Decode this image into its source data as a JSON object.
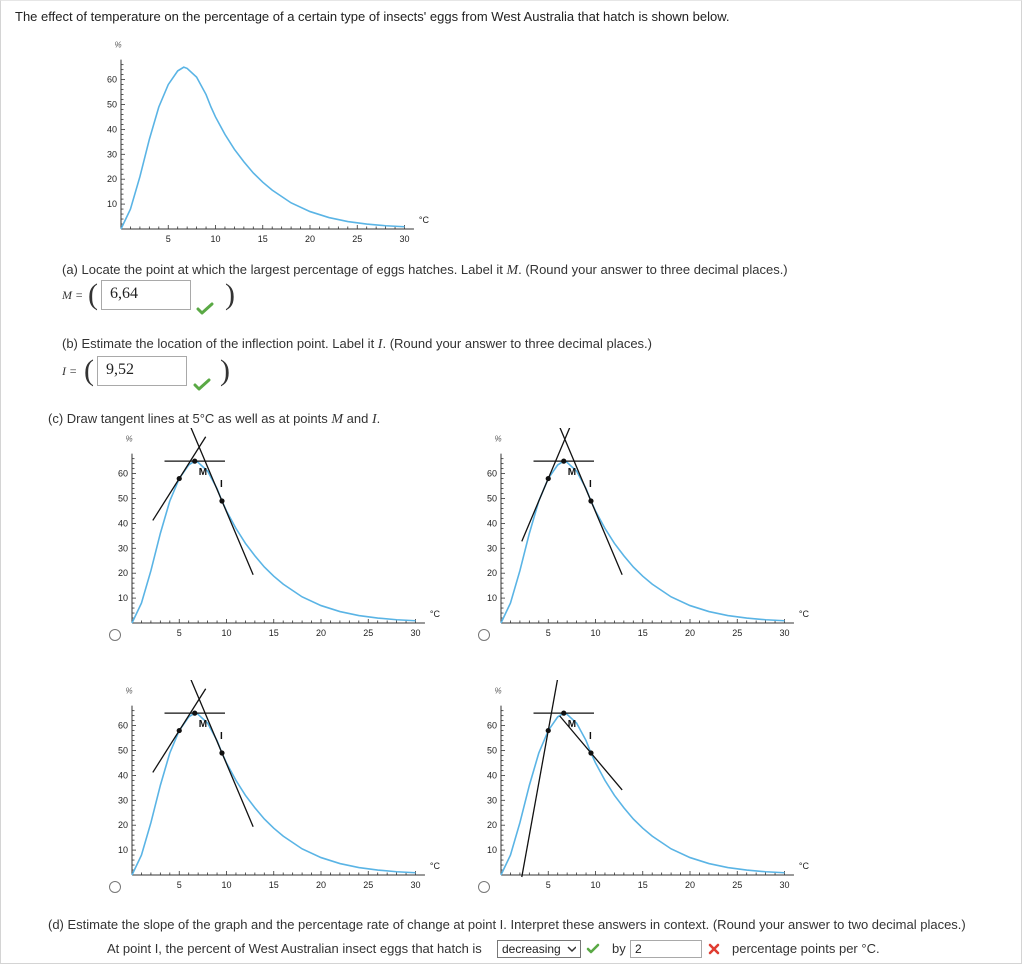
{
  "intro": "The effect of temperature on the percentage of a certain type of insects' eggs from West Australia that hatch is shown below.",
  "axis": {
    "y_unit": "%",
    "x_unit": "°C",
    "y_ticks": [
      "10",
      "20",
      "30",
      "40",
      "50",
      "60"
    ],
    "x_ticks": [
      "5",
      "10",
      "15",
      "20",
      "25",
      "30"
    ]
  },
  "tangent_labels": {
    "m": "M",
    "i": "I"
  },
  "part_a": {
    "question_pre": "(a) Locate the point at which the largest percentage of eggs hatches. Label it ",
    "question_var": "M",
    "question_post": ". (Round your answer to three decimal places.)",
    "label": "M =",
    "value": "6,64"
  },
  "part_b": {
    "question_pre": "(b) Estimate the location of the inflection point. Label it ",
    "question_var": "I",
    "question_post": ". (Round your answer to three decimal places.)",
    "label": "I =",
    "value": "9,52"
  },
  "part_c": {
    "question_pre": "(c) Draw tangent lines at 5°C as well as at points ",
    "question_var1": "M",
    "question_mid": " and ",
    "question_var2": "I",
    "question_post": "."
  },
  "part_d": {
    "question": "(d) Estimate the slope of the graph and the percentage rate of change at point I. Interpret these answers in context. (Round your answer to two decimal places.)",
    "sentence_pre": "At point I, the percent of West Australian insect eggs that hatch is",
    "select_value": "decreasing",
    "by_label": "by",
    "input_value": "2",
    "post_label": "percentage points per °C."
  },
  "colors": {
    "curve": "#5ab4e5",
    "check": "#5aa945",
    "cross": "#e03c31"
  },
  "chart_data": {
    "type": "line",
    "title": "",
    "xlabel": "°C",
    "ylabel": "%",
    "xlim": [
      0,
      32
    ],
    "ylim": [
      0,
      70
    ],
    "series": [
      {
        "x": [
          0,
          1,
          2,
          3,
          4,
          5,
          6,
          6.64,
          7,
          8,
          9,
          9.52,
          10,
          11,
          12,
          13,
          14,
          15,
          16,
          18,
          20,
          22,
          24,
          26,
          28,
          30
        ],
        "values": [
          0,
          8,
          21,
          36,
          49,
          58,
          63.5,
          65,
          64.5,
          61,
          54,
          49,
          45,
          38,
          32,
          27,
          22.5,
          18.8,
          15.6,
          10.5,
          7,
          4.6,
          3,
          2,
          1.3,
          0.9
        ]
      }
    ],
    "points": {
      "M": [
        6.64,
        65
      ],
      "I": [
        9.52,
        49
      ]
    }
  }
}
